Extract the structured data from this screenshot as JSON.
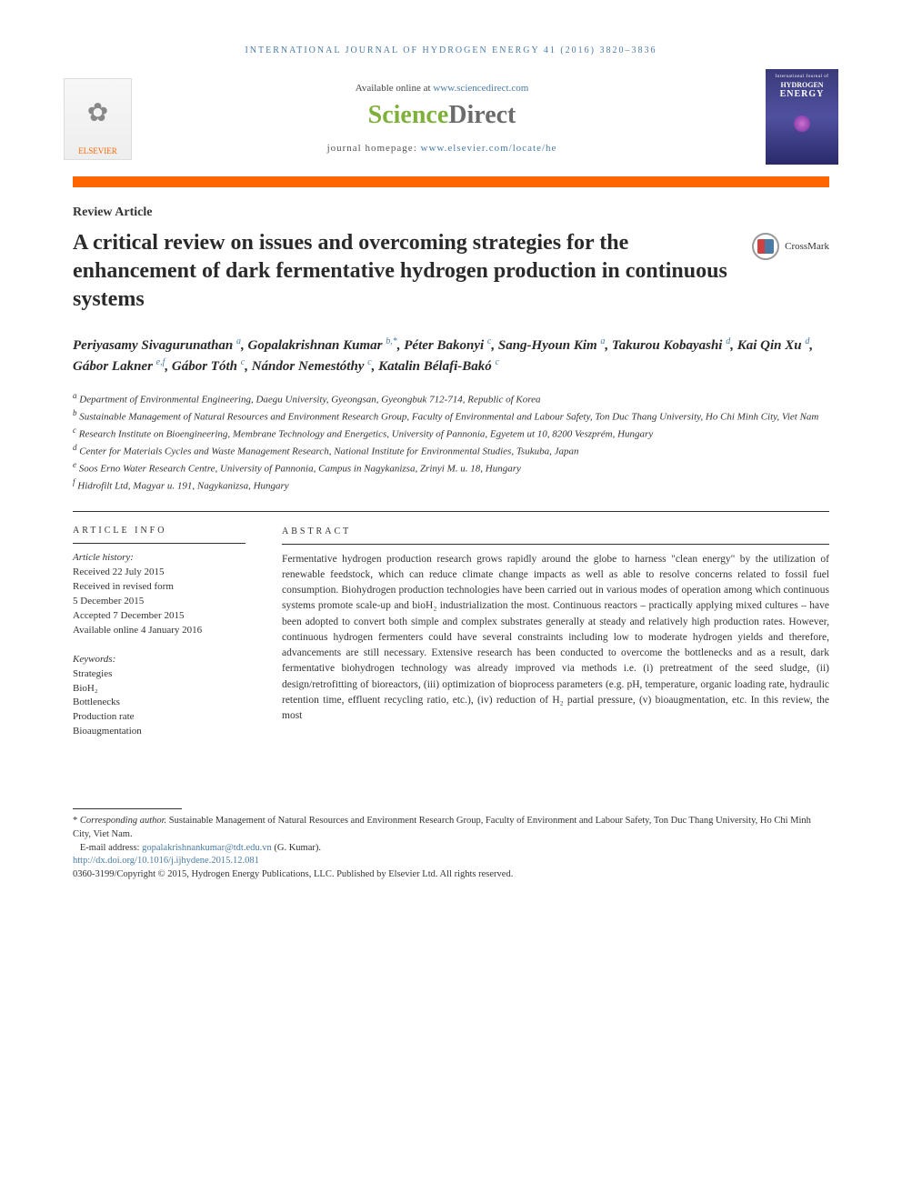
{
  "page": {
    "background_color": "#ffffff",
    "accent_bar_color": "#ff6600",
    "link_color": "#4a7ba6",
    "body_text_color": "#333333"
  },
  "header": {
    "running_head": "international journal of hydrogen energy 41 (2016) 3820–3836",
    "available_prefix": "Available online at ",
    "available_link": "www.sciencedirect.com",
    "logo_science": "Science",
    "logo_direct": "Direct",
    "homepage_prefix": "journal homepage: ",
    "homepage_link": "www.elsevier.com/locate/he",
    "publisher_logo_label": "ELSEVIER",
    "journal_cover": {
      "line1": "International Journal of",
      "line2": "HYDROGEN",
      "line3": "ENERGY",
      "bg_gradient": [
        "#3a3a7a",
        "#5050a0",
        "#2a2a6a"
      ]
    }
  },
  "article": {
    "type": "Review Article",
    "title": "A critical review on issues and overcoming strategies for the enhancement of dark fermentative hydrogen production in continuous systems",
    "crossmark_label": "CrossMark"
  },
  "authors_html": "Periyasamy Sivagurunathan <sup>a</sup>, Gopalakrishnan Kumar <sup>b,*</sup>, Péter Bakonyi <sup>c</sup>, Sang-Hyoun Kim <sup>a</sup>, Takurou Kobayashi <sup>d</sup>, Kai Qin Xu <sup>d</sup>, Gábor Lakner <sup>e,f</sup>, Gábor Tóth <sup>c</sup>, Nándor Nemestóthy <sup>c</sup>, Katalin Bélafi-Bakó <sup>c</sup>",
  "affiliations": [
    {
      "key": "a",
      "text": "Department of Environmental Engineering, Daegu University, Gyeongsan, Gyeongbuk 712-714, Republic of Korea"
    },
    {
      "key": "b",
      "text": "Sustainable Management of Natural Resources and Environment Research Group, Faculty of Environmental and Labour Safety, Ton Duc Thang University, Ho Chi Minh City, Viet Nam"
    },
    {
      "key": "c",
      "text": "Research Institute on Bioengineering, Membrane Technology and Energetics, University of Pannonia, Egyetem ut 10, 8200 Veszprém, Hungary"
    },
    {
      "key": "d",
      "text": "Center for Materials Cycles and Waste Management Research, National Institute for Environmental Studies, Tsukuba, Japan"
    },
    {
      "key": "e",
      "text": "Soos Erno Water Research Centre, University of Pannonia, Campus in Nagykanizsa, Zrinyi M. u. 18, Hungary"
    },
    {
      "key": "f",
      "text": "Hidrofilt Ltd, Magyar u. 191, Nagykanizsa, Hungary"
    }
  ],
  "article_info": {
    "head": "article info",
    "history_label": "Article history:",
    "history": [
      "Received 22 July 2015",
      "Received in revised form",
      "5 December 2015",
      "Accepted 7 December 2015",
      "Available online 4 January 2016"
    ],
    "keywords_label": "Keywords:",
    "keywords": [
      "Strategies",
      "BioH₂",
      "Bottlenecks",
      "Production rate",
      "Bioaugmentation"
    ]
  },
  "abstract": {
    "head": "abstract",
    "text": "Fermentative hydrogen production research grows rapidly around the globe to harness \"clean energy\" by the utilization of renewable feedstock, which can reduce climate change impacts as well as able to resolve concerns related to fossil fuel consumption. Biohydrogen production technologies have been carried out in various modes of operation among which continuous systems promote scale-up and bioH₂ industrialization the most. Continuous reactors – practically applying mixed cultures – have been adopted to convert both simple and complex substrates generally at steady and relatively high production rates. However, continuous hydrogen fermenters could have several constraints including low to moderate hydrogen yields and therefore, advancements are still necessary. Extensive research has been conducted to overcome the bottlenecks and as a result, dark fermentative biohydrogen technology was already improved via methods i.e. (i) pretreatment of the seed sludge, (ii) design/retrofitting of bioreactors, (iii) optimization of bioprocess parameters (e.g. pH, temperature, organic loading rate, hydraulic retention time, effluent recycling ratio, etc.), (iv) reduction of H₂ partial pressure, (v) bioaugmentation, etc. In this review, the most"
  },
  "footnotes": {
    "corr_marker": "*",
    "corr_label": "Corresponding author.",
    "corr_text": " Sustainable Management of Natural Resources and Environment Research Group, Faculty of Environment and Labour Safety, Ton Duc Thang University, Ho Chi Minh City, Viet Nam.",
    "email_label": "E-mail address: ",
    "email": "gopalakrishnankumar@tdt.edu.vn",
    "email_suffix": " (G. Kumar).",
    "doi": "http://dx.doi.org/10.1016/j.ijhydene.2015.12.081",
    "copyright": "0360-3199/Copyright © 2015, Hydrogen Energy Publications, LLC. Published by Elsevier Ltd. All rights reserved."
  }
}
